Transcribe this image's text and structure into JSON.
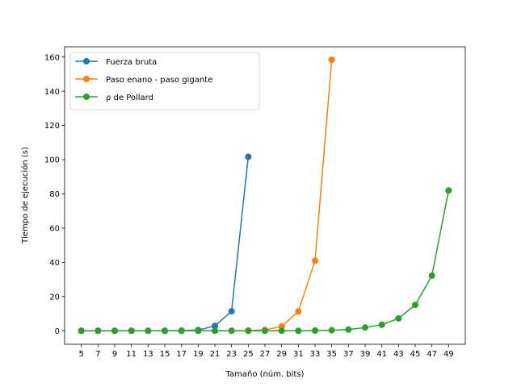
{
  "chart_data": {
    "type": "line",
    "title": "",
    "xlabel": "Tamaño (núm. bits)",
    "ylabel": "Tiempo de ejecución (s)",
    "xlim": [
      3,
      51
    ],
    "ylim": [
      -7.9,
      166
    ],
    "xticks": [
      5,
      7,
      9,
      11,
      13,
      15,
      17,
      19,
      21,
      23,
      25,
      27,
      29,
      31,
      33,
      35,
      37,
      39,
      41,
      43,
      45,
      47,
      49
    ],
    "yticks": [
      0,
      20,
      40,
      60,
      80,
      100,
      120,
      140,
      160
    ],
    "grid": false,
    "legend": "top-left",
    "series": [
      {
        "name": "Fuerza bruta",
        "color": "#1f77b4",
        "x": [
          5,
          7,
          9,
          11,
          13,
          15,
          17,
          19,
          21,
          23,
          25
        ],
        "y": [
          0.0,
          0.0,
          0.0,
          0.0,
          0.0,
          0.0,
          0.1,
          0.4,
          2.8,
          11.4,
          101.7
        ]
      },
      {
        "name": "Paso enano - paso gigante",
        "color": "#ff7f0e",
        "x": [
          5,
          7,
          9,
          11,
          13,
          15,
          17,
          19,
          21,
          23,
          25,
          27,
          29,
          31,
          33,
          35
        ],
        "y": [
          0.0,
          0.0,
          0.0,
          0.0,
          0.0,
          0.0,
          0.0,
          0.0,
          0.0,
          0.0,
          0.1,
          0.5,
          2.5,
          11.3,
          41.0,
          158.4
        ]
      },
      {
        "name": "ρ de Pollard",
        "color": "#2ca02c",
        "x": [
          5,
          7,
          9,
          11,
          13,
          15,
          17,
          19,
          21,
          23,
          25,
          27,
          29,
          31,
          33,
          35,
          37,
          39,
          41,
          43,
          45,
          47,
          49
        ],
        "y": [
          0.0,
          0.0,
          0.0,
          0.0,
          0.0,
          0.0,
          0.0,
          0.0,
          0.0,
          0.0,
          0.0,
          0.0,
          0.0,
          0.0,
          0.1,
          0.3,
          0.7,
          1.9,
          3.5,
          7.2,
          15.1,
          32.2,
          82.0
        ]
      }
    ]
  }
}
